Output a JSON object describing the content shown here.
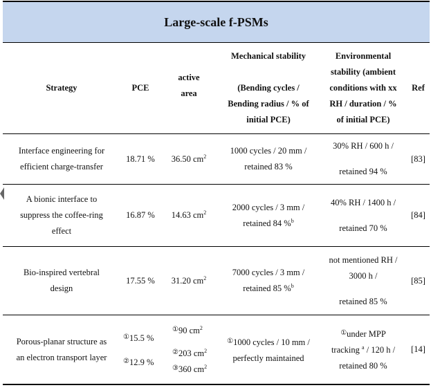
{
  "table": {
    "title": "Large-scale f-PSMs",
    "headers": {
      "strategy": [
        "Strategy"
      ],
      "pce": [
        "PCE"
      ],
      "area": [
        "active",
        "area"
      ],
      "mech": [
        "Mechanical stability",
        "",
        "(Bending cycles /",
        "Bending radius / % of",
        "initial PCE)"
      ],
      "env": [
        "Environmental",
        "stability (ambient",
        "conditions with xx",
        "RH / duration / %",
        "of initial PCE)"
      ],
      "ref": [
        "Ref"
      ]
    },
    "rows": [
      {
        "strategy": [
          "Interface engineering for",
          "efficient charge-transfer"
        ],
        "pce": "18.71 %",
        "area": "36.50 cm",
        "area_sup": "2",
        "mech": [
          "1000 cycles / 20 mm /",
          "retained 83 %"
        ],
        "env": [
          "30% RH / 600 h /",
          "",
          "retained 94 %"
        ],
        "ref": "[83]"
      },
      {
        "strategy": [
          "A bionic interface to",
          "suppress the coffee-ring",
          "effect"
        ],
        "pce": "16.87 %",
        "area": "14.63 cm",
        "area_sup": "2",
        "mech1": "2000 cycles / 3 mm /",
        "mech2": "retained 84 %",
        "mech_sup": "b",
        "env": [
          "40% RH / 1400 h /",
          "",
          "retained 70 %"
        ],
        "ref": "[84]"
      },
      {
        "strategy": [
          "Bio-inspired vertebral",
          "design"
        ],
        "pce": "17.55 %",
        "area": "31.20 cm",
        "area_sup": "2",
        "mech1": "7000 cycles / 3 mm /",
        "mech2": "retained 85 %",
        "mech_sup": "b",
        "env": [
          "not mentioned RH /",
          "3000 h /",
          "",
          "retained 85 %"
        ],
        "ref": "[85]"
      },
      {
        "strategy": [
          "Porous-planar structure as",
          "an electron transport layer"
        ],
        "pce1_mark": "①",
        "pce1": "15.5 %",
        "pce2_mark": "②",
        "pce2": "12.9 %",
        "area1_mark": "①",
        "area1": "90 cm",
        "area1_sup": "2",
        "area2_mark": "②",
        "area2": "203 cm",
        "area2_sup": "2",
        "area3_mark": "③",
        "area3": "360 cm",
        "area3_sup": "2",
        "mech1_mark": "①",
        "mech1": "1000 cycles / 10 mm /",
        "mech2": "perfectly maintained",
        "env1_mark": "①",
        "env1": "under MPP",
        "env2a": "tracking ",
        "env2_sup": "a",
        "env2b": " / 120 h /",
        "env3": "retained 80 %",
        "ref": "[14]"
      }
    ]
  }
}
